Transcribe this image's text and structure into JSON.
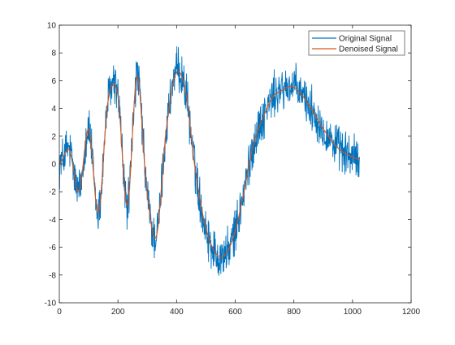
{
  "chart_data": {
    "type": "line",
    "title": "",
    "xlabel": "",
    "ylabel": "",
    "xlim": [
      0,
      1200
    ],
    "ylim": [
      -10,
      10
    ],
    "xticks": [
      0,
      200,
      400,
      600,
      800,
      1000,
      1200
    ],
    "yticks": [
      -10,
      -8,
      -6,
      -4,
      -2,
      0,
      2,
      4,
      6,
      8,
      10
    ],
    "grid": false,
    "legend_position": "top-right",
    "series": [
      {
        "name": "Original Signal",
        "color": "#0072BD",
        "description_x": "sample index 1..1024",
        "values_sampled_every_32": [
          0,
          1.5,
          -2.5,
          3.0,
          -4.0,
          5.0,
          5.2,
          -3.0,
          6.5,
          -2.0,
          -5.5,
          2.5,
          6.8,
          5.5,
          -0.5,
          -4.5,
          -6.5,
          -6.8,
          -5.0,
          -2.0,
          1.5,
          3.5,
          5.0,
          5.4,
          5.6,
          5.0,
          4.0,
          3.0,
          2.0,
          1.2,
          0.8,
          0.5
        ]
      },
      {
        "name": "Denoised Signal",
        "color": "#D95319",
        "description_x": "sample index 1..1024",
        "values_sampled_every_32": [
          0,
          1.0,
          -2.0,
          2.5,
          -3.5,
          4.5,
          5.0,
          -3.0,
          6.3,
          -1.8,
          -5.2,
          2.3,
          6.5,
          5.3,
          -0.3,
          -4.3,
          -6.3,
          -6.6,
          -5.2,
          -2.2,
          1.3,
          3.3,
          4.8,
          5.3,
          5.6,
          5.0,
          4.0,
          2.8,
          1.8,
          1.0,
          0.6,
          0.3
        ]
      }
    ]
  }
}
